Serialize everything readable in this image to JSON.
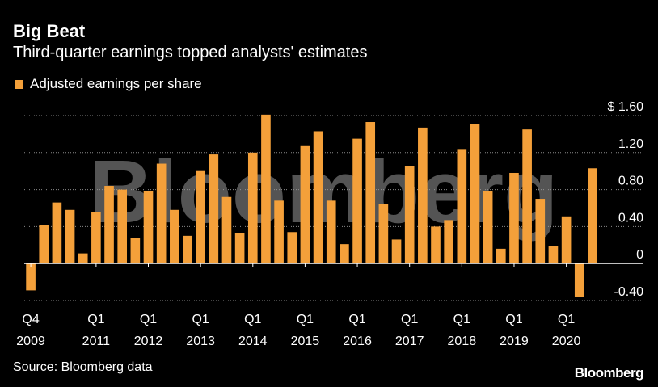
{
  "header": {
    "title": "Big Beat",
    "subtitle": "Third-quarter earnings topped analysts' estimates"
  },
  "legend": {
    "label": "Adjusted earnings per share"
  },
  "footer": {
    "source": "Source: Bloomberg data",
    "logo": "Bloomberg"
  },
  "watermark": "Bloomberg",
  "colors": {
    "bar": "#f4a03a",
    "background": "#000000",
    "text": "#ffffff"
  },
  "chart_data": {
    "type": "bar",
    "title": "Big Beat",
    "subtitle": "Third-quarter earnings topped analysts' estimates",
    "legend": [
      "Adjusted earnings per share"
    ],
    "y_axis_position": "right",
    "ylim": [
      -0.4,
      1.6
    ],
    "yticks": [
      1.6,
      1.2,
      0.8,
      0.4,
      0,
      -0.4
    ],
    "ytick_labels": [
      "$ 1.60",
      "1.20",
      "0.80",
      "0.40",
      "0",
      "-0.40"
    ],
    "grid": true,
    "categories": [
      "2009 Q4",
      "2010 Q1",
      "2010 Q2",
      "2010 Q3",
      "2010 Q4",
      "2011 Q1",
      "2011 Q2",
      "2011 Q3",
      "2011 Q4",
      "2012 Q1",
      "2012 Q2",
      "2012 Q3",
      "2012 Q4",
      "2013 Q1",
      "2013 Q2",
      "2013 Q3",
      "2013 Q4",
      "2014 Q1",
      "2014 Q2",
      "2014 Q3",
      "2014 Q4",
      "2015 Q1",
      "2015 Q2",
      "2015 Q3",
      "2015 Q4",
      "2016 Q1",
      "2016 Q2",
      "2016 Q3",
      "2016 Q4",
      "2017 Q1",
      "2017 Q2",
      "2017 Q3",
      "2017 Q4",
      "2018 Q1",
      "2018 Q2",
      "2018 Q3",
      "2018 Q4",
      "2019 Q1",
      "2019 Q2",
      "2019 Q3",
      "2019 Q4",
      "2020 Q1",
      "2020 Q2",
      "2020 Q3"
    ],
    "values": [
      -0.29,
      0.42,
      0.66,
      0.58,
      0.11,
      0.56,
      0.84,
      0.8,
      0.28,
      0.78,
      1.08,
      0.58,
      0.3,
      1.0,
      1.18,
      0.72,
      0.33,
      1.2,
      1.61,
      0.68,
      0.34,
      1.27,
      1.43,
      0.68,
      0.21,
      1.35,
      1.53,
      0.64,
      0.26,
      1.05,
      1.47,
      0.4,
      0.47,
      1.23,
      1.51,
      0.78,
      0.16,
      0.98,
      1.45,
      0.7,
      0.19,
      0.51,
      -0.36,
      1.03
    ],
    "x_tick_labels": [
      {
        "index": 0,
        "top": "Q4",
        "bottom": "2009"
      },
      {
        "index": 5,
        "top": "Q1",
        "bottom": "2011"
      },
      {
        "index": 9,
        "top": "Q1",
        "bottom": "2012"
      },
      {
        "index": 13,
        "top": "Q1",
        "bottom": "2013"
      },
      {
        "index": 17,
        "top": "Q1",
        "bottom": "2014"
      },
      {
        "index": 21,
        "top": "Q1",
        "bottom": "2015"
      },
      {
        "index": 25,
        "top": "Q1",
        "bottom": "2016"
      },
      {
        "index": 29,
        "top": "Q1",
        "bottom": "2017"
      },
      {
        "index": 33,
        "top": "Q1",
        "bottom": "2018"
      },
      {
        "index": 37,
        "top": "Q1",
        "bottom": "2019"
      },
      {
        "index": 41,
        "top": "Q1",
        "bottom": "2020"
      }
    ]
  }
}
